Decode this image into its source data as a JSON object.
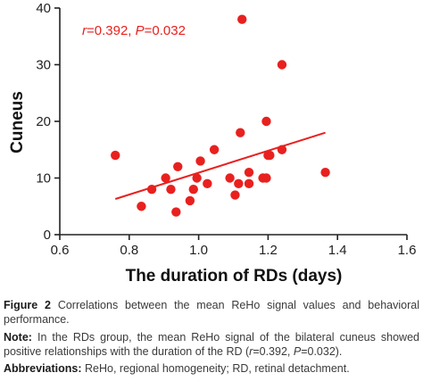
{
  "chart_data": {
    "type": "scatter",
    "xlabel": "The duration of RDs (days)",
    "ylabel": "Cuneus",
    "xlim": [
      0.6,
      1.6
    ],
    "ylim": [
      0,
      40
    ],
    "x_ticks": [
      "0.6",
      "0.8",
      "1.0",
      "1.2",
      "1.4",
      "1.6"
    ],
    "y_ticks": [
      "0",
      "10",
      "20",
      "30",
      "40"
    ],
    "grid": false,
    "colors": {
      "points": "#e8211f",
      "fit_line": "#e8211f"
    },
    "annotation": {
      "r_symbol": "r",
      "r_text": "=0.392, ",
      "p_symbol": "P",
      "p_text": "=0.032"
    },
    "points": [
      {
        "x": 0.76,
        "y": 14
      },
      {
        "x": 0.835,
        "y": 5
      },
      {
        "x": 0.865,
        "y": 8
      },
      {
        "x": 0.905,
        "y": 10
      },
      {
        "x": 0.92,
        "y": 8
      },
      {
        "x": 0.935,
        "y": 4
      },
      {
        "x": 0.94,
        "y": 12
      },
      {
        "x": 0.975,
        "y": 6
      },
      {
        "x": 0.985,
        "y": 8
      },
      {
        "x": 0.995,
        "y": 10
      },
      {
        "x": 1.005,
        "y": 13
      },
      {
        "x": 1.025,
        "y": 9
      },
      {
        "x": 1.045,
        "y": 15
      },
      {
        "x": 1.09,
        "y": 10
      },
      {
        "x": 1.105,
        "y": 7
      },
      {
        "x": 1.115,
        "y": 9
      },
      {
        "x": 1.12,
        "y": 18
      },
      {
        "x": 1.125,
        "y": 38
      },
      {
        "x": 1.145,
        "y": 11
      },
      {
        "x": 1.145,
        "y": 9
      },
      {
        "x": 1.185,
        "y": 10
      },
      {
        "x": 1.195,
        "y": 10
      },
      {
        "x": 1.195,
        "y": 20
      },
      {
        "x": 1.2,
        "y": 14
      },
      {
        "x": 1.205,
        "y": 14
      },
      {
        "x": 1.24,
        "y": 30
      },
      {
        "x": 1.24,
        "y": 15
      },
      {
        "x": 1.365,
        "y": 11
      }
    ],
    "fit_line": {
      "x": [
        0.76,
        1.365
      ],
      "y": [
        6.3,
        18.0
      ]
    }
  },
  "caption": {
    "figure_label": "Figure 2",
    "figure_text": "Correlations between the mean ReHo signal values and behavioral performance.",
    "note_label": "Note:",
    "note_text_1": "In the RDs group, the mean ReHo signal of the bilateral cuneus showed positive relationships with the duration of the RD (",
    "note_r": "r",
    "note_text_2": "=0.392, ",
    "note_p": "P",
    "note_text_3": "=0.032).",
    "abbr_label": "Abbreviations:",
    "abbr_text": "ReHo, regional homogeneity; RD, retinal detachment."
  }
}
